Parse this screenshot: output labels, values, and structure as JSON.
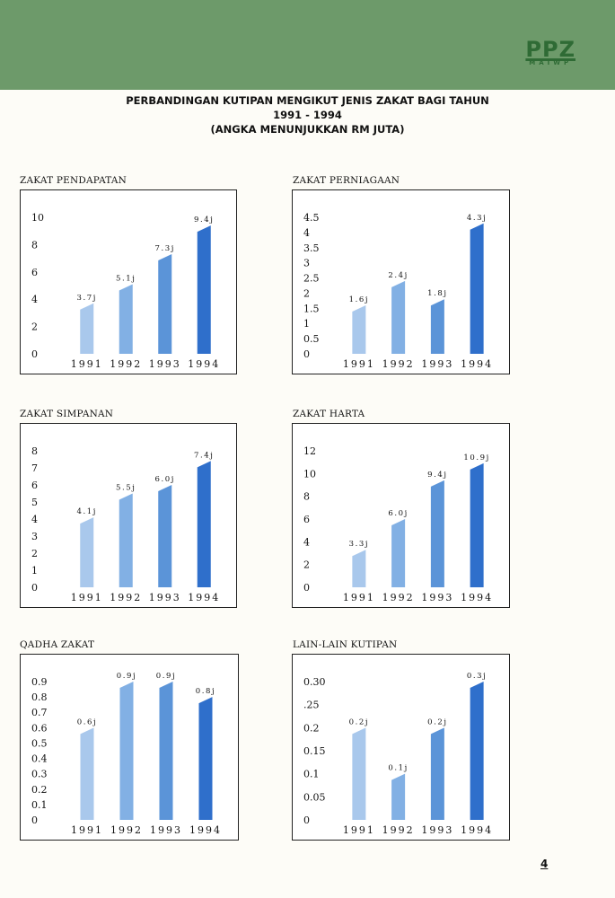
{
  "header": {
    "logo_text": "PPZ",
    "logo_sub": "MAIWP",
    "title_line1": "PERBANDINGAN KUTIPAN MENGIKUT JENIS ZAKAT BAGI TAHUN",
    "title_line2": "1991 - 1994",
    "title_line3": "(ANGKA MENUNJUKKAN RM JUTA)"
  },
  "page_number": "4",
  "colors": [
    "#a9c8ec",
    "#82b0e4",
    "#5b94d8",
    "#2f6fcb"
  ],
  "chart_data": [
    {
      "type": "bar",
      "title": "ZAKAT PENDAPATAN",
      "categories": [
        "1991",
        "1992",
        "1993",
        "1994"
      ],
      "values": [
        3.7,
        5.1,
        7.3,
        9.4
      ],
      "data_labels": [
        "3.7j",
        "5.1j",
        "7.3j",
        "9.4j"
      ],
      "ylim": [
        0,
        10
      ],
      "yticks": [
        "0",
        "2",
        "4",
        "6",
        "8",
        "10"
      ],
      "ytick_values": [
        0,
        2,
        4,
        6,
        8,
        10
      ]
    },
    {
      "type": "bar",
      "title": "ZAKAT PERNIAGAAN",
      "categories": [
        "1991",
        "1992",
        "1993",
        "1994"
      ],
      "values": [
        1.6,
        2.4,
        1.8,
        4.3
      ],
      "data_labels": [
        "1.6j",
        "2.4j",
        "1.8j",
        "4.3j"
      ],
      "ylim": [
        0,
        4.5
      ],
      "yticks": [
        "0",
        "0.5",
        "1",
        "1.5",
        "2",
        "2.5",
        "3",
        "3.5",
        "4",
        "4.5"
      ],
      "ytick_values": [
        0,
        0.5,
        1,
        1.5,
        2,
        2.5,
        3,
        3.5,
        4,
        4.5
      ]
    },
    {
      "type": "bar",
      "title": "ZAKAT SIMPANAN",
      "categories": [
        "1991",
        "1992",
        "1993",
        "1994"
      ],
      "values": [
        4.1,
        5.5,
        6.0,
        7.4
      ],
      "data_labels": [
        "4.1j",
        "5.5j",
        "6.0j",
        "7.4j"
      ],
      "ylim": [
        0,
        8
      ],
      "yticks": [
        "0",
        "1",
        "2",
        "3",
        "4",
        "5",
        "6",
        "7",
        "8"
      ],
      "ytick_values": [
        0,
        1,
        2,
        3,
        4,
        5,
        6,
        7,
        8
      ]
    },
    {
      "type": "bar",
      "title": "ZAKAT HARTA",
      "categories": [
        "1991",
        "1992",
        "1993",
        "1994"
      ],
      "values": [
        3.3,
        6.0,
        9.4,
        10.9
      ],
      "data_labels": [
        "3.3j",
        "6.0j",
        "9.4j",
        "10.9j"
      ],
      "ylim": [
        0,
        12
      ],
      "yticks": [
        "0",
        "2",
        "4",
        "6",
        "8",
        "10",
        "12"
      ],
      "ytick_values": [
        0,
        2,
        4,
        6,
        8,
        10,
        12
      ]
    },
    {
      "type": "bar",
      "title": "QADHA ZAKAT",
      "categories": [
        "1991",
        "1992",
        "1993",
        "1994"
      ],
      "values": [
        0.6,
        0.9,
        0.9,
        0.8
      ],
      "data_labels": [
        "0.6j",
        "0.9j",
        "0.9j",
        "0.8j"
      ],
      "ylim": [
        0,
        0.9
      ],
      "yticks": [
        "0",
        "0.1",
        "0.2",
        "0.3",
        "0.4",
        "0.5",
        "0.6",
        "0.7",
        "0.8",
        "0.9"
      ],
      "ytick_values": [
        0,
        0.1,
        0.2,
        0.3,
        0.4,
        0.5,
        0.6,
        0.7,
        0.8,
        0.9
      ]
    },
    {
      "type": "bar",
      "title": "LAIN-LAIN KUTIPAN",
      "categories": [
        "1991",
        "1992",
        "1993",
        "1994"
      ],
      "values": [
        0.2,
        0.1,
        0.2,
        0.3
      ],
      "data_labels": [
        "0.2j",
        "0.1j",
        "0.2j",
        "0.3j"
      ],
      "ylim": [
        0,
        0.3
      ],
      "yticks": [
        "0",
        "0.05",
        "0.1",
        "0.15",
        "0.2",
        ".25",
        "0.30"
      ],
      "ytick_values": [
        0,
        0.05,
        0.1,
        0.15,
        0.2,
        0.25,
        0.3
      ]
    }
  ]
}
